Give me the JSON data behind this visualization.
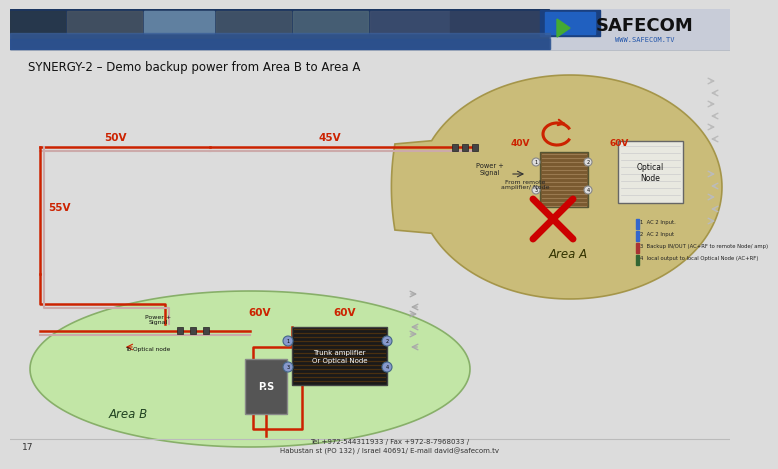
{
  "title": "SYNERGY-2 – Demo backup power from Area B to Area A",
  "bg_color": "#dcdcdc",
  "header_dark": "#1b3560",
  "header_mid": "#3a5f9a",
  "safecom_bg": "#c8ccd8",
  "safecom_text": "SAFECOM",
  "safecom_sub": "WWW.SAFECOM.TV",
  "safecom_green": "#44aa33",
  "area_a_fill": "#c9b96e",
  "area_a_edge": "#a09040",
  "area_b_fill": "#c0e8a0",
  "area_b_edge": "#80aa60",
  "voltage_color": "#cc2200",
  "line_red": "#cc2200",
  "line_gray": "#aaaaaa",
  "line_pink": "#ddaaaa",
  "x_color": "#cc0000",
  "footnote": "Tel +972-544311933 / Fax +972-8-7968033 /\nHabustan st (PO 132) / Israel 40691/ E-mail david@safecom.tv",
  "page_num": "17",
  "optical_node_label": "Optical\nNode",
  "trunk_amp_label": "Trunk amplifier\nOr Optical Node",
  "ps_label": "P.S",
  "power_signal_label": "Power +\nSignal",
  "from_remote_label": "From remote\namplifier/ Node",
  "to_optical_label": "To Optical node",
  "voltage_50v": "50V",
  "voltage_45v": "45V",
  "voltage_55v": "55V",
  "voltage_60v": "60V",
  "voltage_40v": "40V",
  "ac_labels": [
    "1  AC 2 Input.",
    "2  AC 2 Input",
    "3  Backup IN/OUT (AC+RF to remote Node/ amp)",
    "4  local output to local Optical Node (AC+RF)"
  ]
}
